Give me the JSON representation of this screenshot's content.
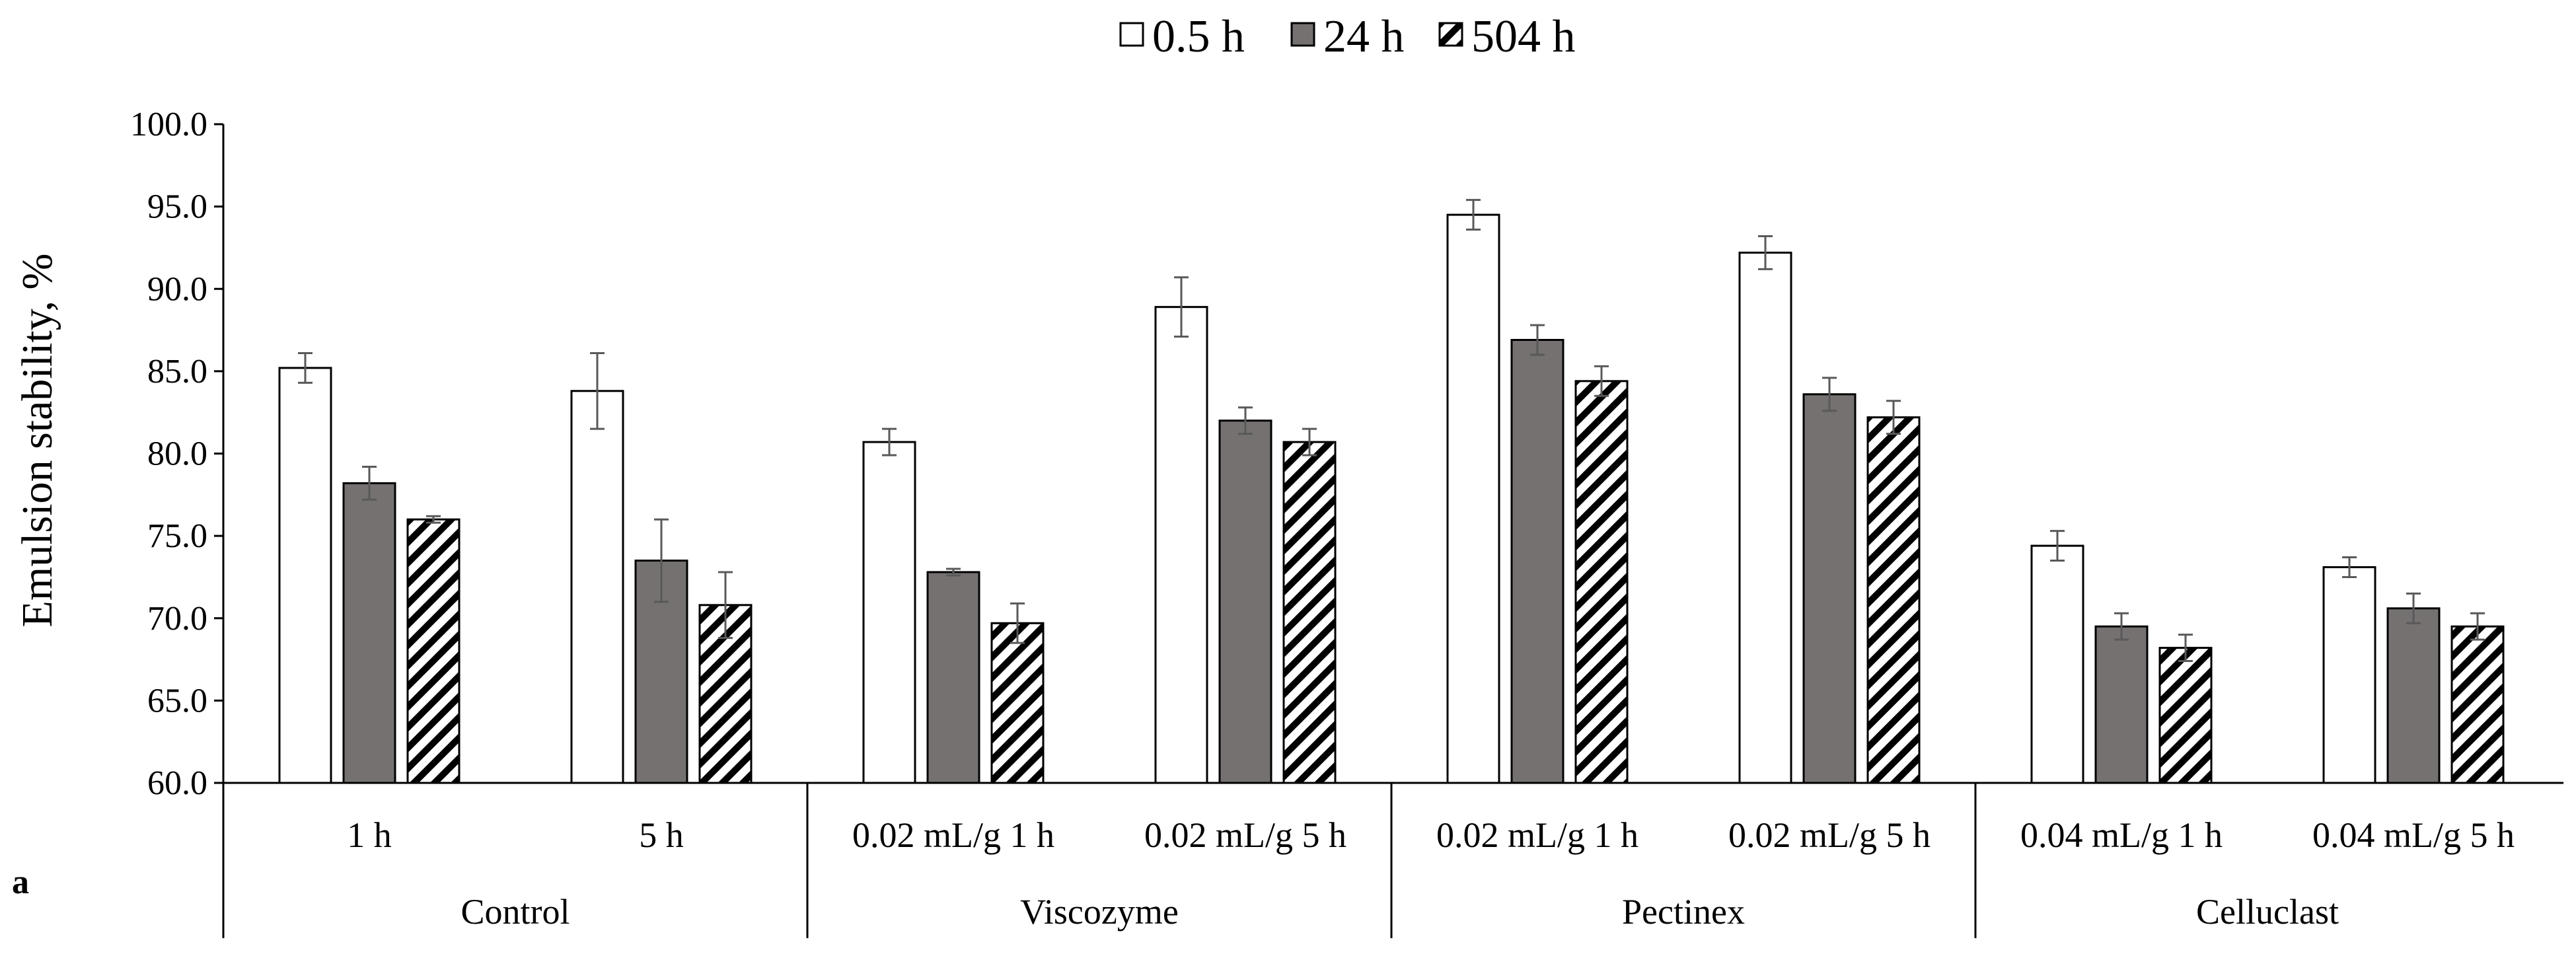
{
  "chart_data": {
    "type": "bar",
    "panel_label": "a",
    "title": "",
    "ylabel": "Emulsion stability, %",
    "xlabel": "",
    "ylim": [
      60.0,
      100.0
    ],
    "ytick_step": 5,
    "yticks": [
      "60.0",
      "65.0",
      "70.0",
      "75.0",
      "80.0",
      "85.0",
      "90.0",
      "95.0",
      "100.0"
    ],
    "legend_position": "top-center",
    "groups": [
      {
        "label": "Control",
        "categories": [
          "1 h",
          "5 h"
        ]
      },
      {
        "label": "Viscozyme",
        "categories": [
          "0.02 mL/g 1 h",
          "0.02 mL/g 5 h"
        ]
      },
      {
        "label": "Pectinex",
        "categories": [
          "0.02 mL/g 1 h",
          "0.02 mL/g 5 h"
        ]
      },
      {
        "label": "Celluclast",
        "categories": [
          "0.04 mL/g 1 h",
          "0.04 mL/g 5 h"
        ]
      }
    ],
    "series": [
      {
        "name": "0.5 h",
        "fill": "#ffffff",
        "pattern": "solid",
        "values": [
          85.2,
          83.8,
          80.7,
          88.9,
          94.5,
          92.2,
          74.4,
          73.1
        ],
        "errors": [
          0.9,
          2.3,
          0.8,
          1.8,
          0.9,
          1.0,
          0.9,
          0.6
        ]
      },
      {
        "name": "24 h",
        "fill": "#757171",
        "pattern": "solid",
        "values": [
          78.2,
          73.5,
          72.8,
          82.0,
          86.9,
          83.6,
          69.5,
          70.6
        ],
        "errors": [
          1.0,
          2.5,
          0.2,
          0.8,
          0.9,
          1.0,
          0.8,
          0.9
        ]
      },
      {
        "name": "504 h",
        "fill": "#ffffff",
        "pattern": "diagonal-hatch",
        "hatch_color": "#000000",
        "values": [
          76.0,
          70.8,
          69.7,
          80.7,
          84.4,
          82.2,
          68.2,
          69.5
        ],
        "errors": [
          0.2,
          2.0,
          1.2,
          0.8,
          0.9,
          1.0,
          0.8,
          0.8
        ]
      }
    ]
  }
}
